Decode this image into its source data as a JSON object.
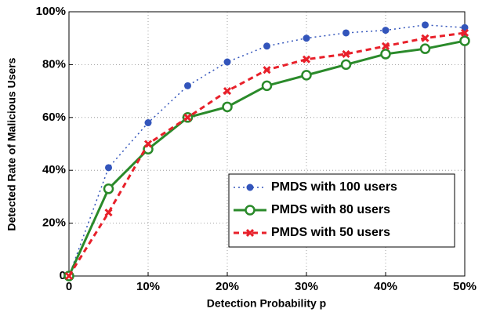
{
  "chart_data": {
    "type": "line",
    "xlabel": "Detection Probability p",
    "ylabel": "Detected Rate of Malicious Users",
    "x": [
      0,
      5,
      10,
      15,
      20,
      25,
      30,
      35,
      40,
      45,
      50
    ],
    "series": [
      {
        "name": "PMDS with 100 users",
        "color": "#3355bb",
        "line_style": "dotted",
        "marker": "dot",
        "values": [
          0,
          41,
          58,
          72,
          81,
          87,
          90,
          92,
          93,
          95,
          94
        ]
      },
      {
        "name": "PMDS with 80 users",
        "color": "#2a8a2a",
        "line_style": "solid",
        "marker": "circle",
        "values": [
          0,
          33,
          48,
          60,
          64,
          72,
          76,
          80,
          84,
          86,
          89
        ]
      },
      {
        "name": "PMDS with 50 users",
        "color": "#e8202a",
        "line_style": "dashed",
        "marker": "x",
        "values": [
          0,
          24,
          50,
          60,
          70,
          78,
          82,
          84,
          87,
          90,
          92
        ]
      }
    ],
    "xlim": [
      0,
      50
    ],
    "xticks": [
      0,
      {
        "value": 10,
        "label": "10%"
      },
      {
        "value": 20,
        "label": "20%"
      },
      {
        "value": 30,
        "label": "30%"
      },
      {
        "value": 40,
        "label": "40%"
      },
      {
        "value": 50,
        "label": "50%"
      }
    ],
    "ylim": [
      0,
      100
    ],
    "yticks": [
      0,
      {
        "value": 20,
        "label": "20%"
      },
      {
        "value": 40,
        "label": "40%"
      },
      {
        "value": 60,
        "label": "60%"
      },
      {
        "value": 80,
        "label": "80%"
      },
      {
        "value": 100,
        "label": "100%"
      }
    ],
    "grid": true,
    "legend": "lower right"
  }
}
